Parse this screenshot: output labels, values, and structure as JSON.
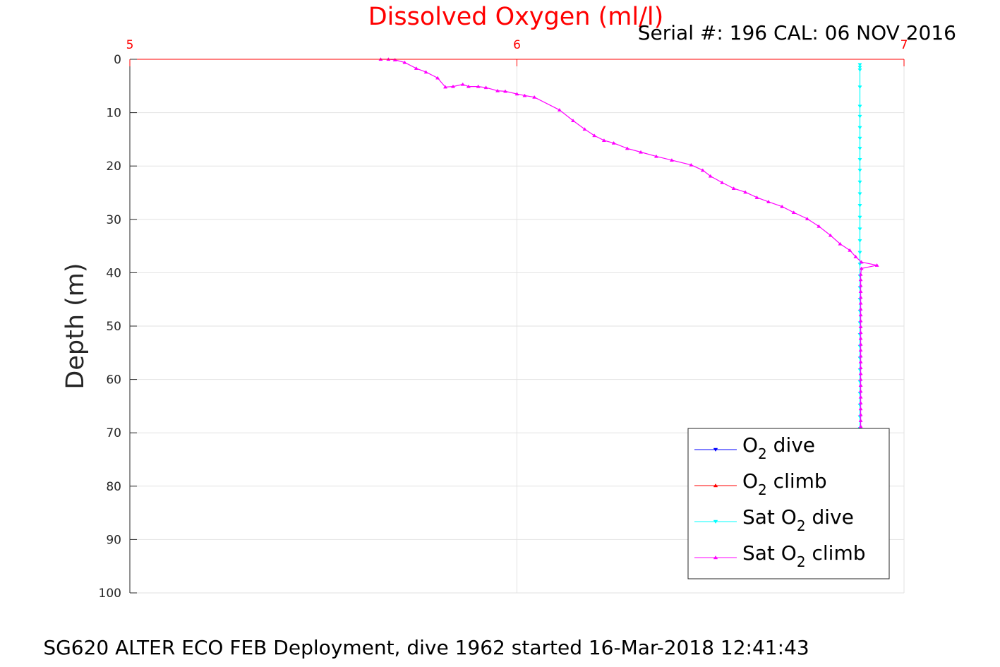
{
  "chart_data": {
    "type": "line",
    "title": "Dissolved Oxygen (ml/l)",
    "subtitle": "Serial #: 196  CAL: 06 NOV 2016",
    "ylabel": "Depth (m)",
    "caption": "SG620 ALTER ECO FEB Deployment, dive 1962 started 16-Mar-2018 12:41:43",
    "xlim": [
      5,
      7
    ],
    "ylim": [
      0,
      100
    ],
    "y_reversed": true,
    "x_axis_position": "top",
    "xticks": [
      "5",
      "6",
      "7"
    ],
    "yticks": [
      "0",
      "10",
      "20",
      "30",
      "40",
      "50",
      "60",
      "70",
      "80",
      "90",
      "100"
    ],
    "grid": true,
    "legend_position": "bottom-right",
    "legend": [
      {
        "prefix": "O",
        "sub": "2",
        "suffix": " dive",
        "color": "#0000ff",
        "marker": "down"
      },
      {
        "prefix": "O",
        "sub": "2",
        "suffix": " climb",
        "color": "#ff0000",
        "marker": "up"
      },
      {
        "prefix": "Sat O",
        "sub": "2",
        "suffix": " dive",
        "color": "#00ffff",
        "marker": "down"
      },
      {
        "prefix": "Sat O",
        "sub": "2",
        "suffix": " climb",
        "color": "#ff00ff",
        "marker": "up"
      }
    ],
    "series": [
      {
        "name": "Sat O2 dive",
        "color": "#00ffff",
        "marker": "down",
        "points": [
          [
            6.886,
            1.0
          ],
          [
            6.886,
            1.5
          ],
          [
            6.886,
            2.0
          ],
          [
            6.886,
            5.2
          ],
          [
            6.886,
            8.8
          ],
          [
            6.886,
            10.7
          ],
          [
            6.886,
            12.8
          ],
          [
            6.886,
            14.8
          ],
          [
            6.886,
            16.7
          ],
          [
            6.886,
            18.8
          ],
          [
            6.886,
            20.8
          ],
          [
            6.886,
            23.0
          ],
          [
            6.886,
            25.2
          ],
          [
            6.886,
            27.4
          ],
          [
            6.886,
            29.6
          ],
          [
            6.886,
            31.8
          ],
          [
            6.886,
            34.0
          ],
          [
            6.886,
            36.2
          ],
          [
            6.886,
            38.4
          ],
          [
            6.886,
            40.6
          ],
          [
            6.886,
            42.8
          ],
          [
            6.886,
            45.0
          ],
          [
            6.886,
            47.2
          ],
          [
            6.886,
            49.4
          ],
          [
            6.886,
            51.6
          ],
          [
            6.886,
            53.8
          ],
          [
            6.886,
            56.0
          ],
          [
            6.886,
            58.2
          ],
          [
            6.886,
            60.4
          ],
          [
            6.886,
            62.6
          ],
          [
            6.886,
            64.8
          ],
          [
            6.886,
            67.0
          ],
          [
            6.886,
            69.2
          ]
        ]
      },
      {
        "name": "Sat O2 climb",
        "color": "#ff00ff",
        "marker": "up",
        "points": [
          [
            5.648,
            0.0
          ],
          [
            5.668,
            0.0
          ],
          [
            5.685,
            0.1
          ],
          [
            5.71,
            0.6
          ],
          [
            5.74,
            1.7
          ],
          [
            5.765,
            2.4
          ],
          [
            5.795,
            3.5
          ],
          [
            5.815,
            5.2
          ],
          [
            5.835,
            5.1
          ],
          [
            5.86,
            4.7
          ],
          [
            5.875,
            5.1
          ],
          [
            5.9,
            5.1
          ],
          [
            5.92,
            5.3
          ],
          [
            5.95,
            5.9
          ],
          [
            5.97,
            6.0
          ],
          [
            6.0,
            6.5
          ],
          [
            6.02,
            6.8
          ],
          [
            6.045,
            7.1
          ],
          [
            6.11,
            9.5
          ],
          [
            6.145,
            11.5
          ],
          [
            6.175,
            13.1
          ],
          [
            6.2,
            14.3
          ],
          [
            6.225,
            15.2
          ],
          [
            6.25,
            15.7
          ],
          [
            6.285,
            16.7
          ],
          [
            6.32,
            17.4
          ],
          [
            6.36,
            18.2
          ],
          [
            6.4,
            18.9
          ],
          [
            6.45,
            19.8
          ],
          [
            6.48,
            20.8
          ],
          [
            6.5,
            21.9
          ],
          [
            6.53,
            23.1
          ],
          [
            6.56,
            24.2
          ],
          [
            6.59,
            24.9
          ],
          [
            6.62,
            25.9
          ],
          [
            6.65,
            26.7
          ],
          [
            6.685,
            27.6
          ],
          [
            6.715,
            28.7
          ],
          [
            6.75,
            29.9
          ],
          [
            6.78,
            31.3
          ],
          [
            6.81,
            33.0
          ],
          [
            6.835,
            34.6
          ],
          [
            6.86,
            35.8
          ],
          [
            6.875,
            37.0
          ],
          [
            6.89,
            38.0
          ],
          [
            6.93,
            38.6
          ],
          [
            6.89,
            39.2
          ],
          [
            6.888,
            40.3
          ],
          [
            6.888,
            41.3
          ],
          [
            6.888,
            42.4
          ],
          [
            6.888,
            43.5
          ],
          [
            6.888,
            44.6
          ],
          [
            6.888,
            45.7
          ],
          [
            6.888,
            46.8
          ],
          [
            6.888,
            47.9
          ],
          [
            6.888,
            49.0
          ],
          [
            6.888,
            50.1
          ],
          [
            6.888,
            51.2
          ],
          [
            6.888,
            52.3
          ],
          [
            6.888,
            53.4
          ],
          [
            6.888,
            54.5
          ],
          [
            6.888,
            55.6
          ],
          [
            6.888,
            56.7
          ],
          [
            6.888,
            57.8
          ],
          [
            6.888,
            58.9
          ],
          [
            6.888,
            60.0
          ],
          [
            6.888,
            61.1
          ],
          [
            6.888,
            62.2
          ],
          [
            6.888,
            63.3
          ],
          [
            6.888,
            64.4
          ],
          [
            6.888,
            65.5
          ],
          [
            6.888,
            66.6
          ],
          [
            6.888,
            67.7
          ],
          [
            6.888,
            68.8
          ]
        ]
      }
    ]
  }
}
